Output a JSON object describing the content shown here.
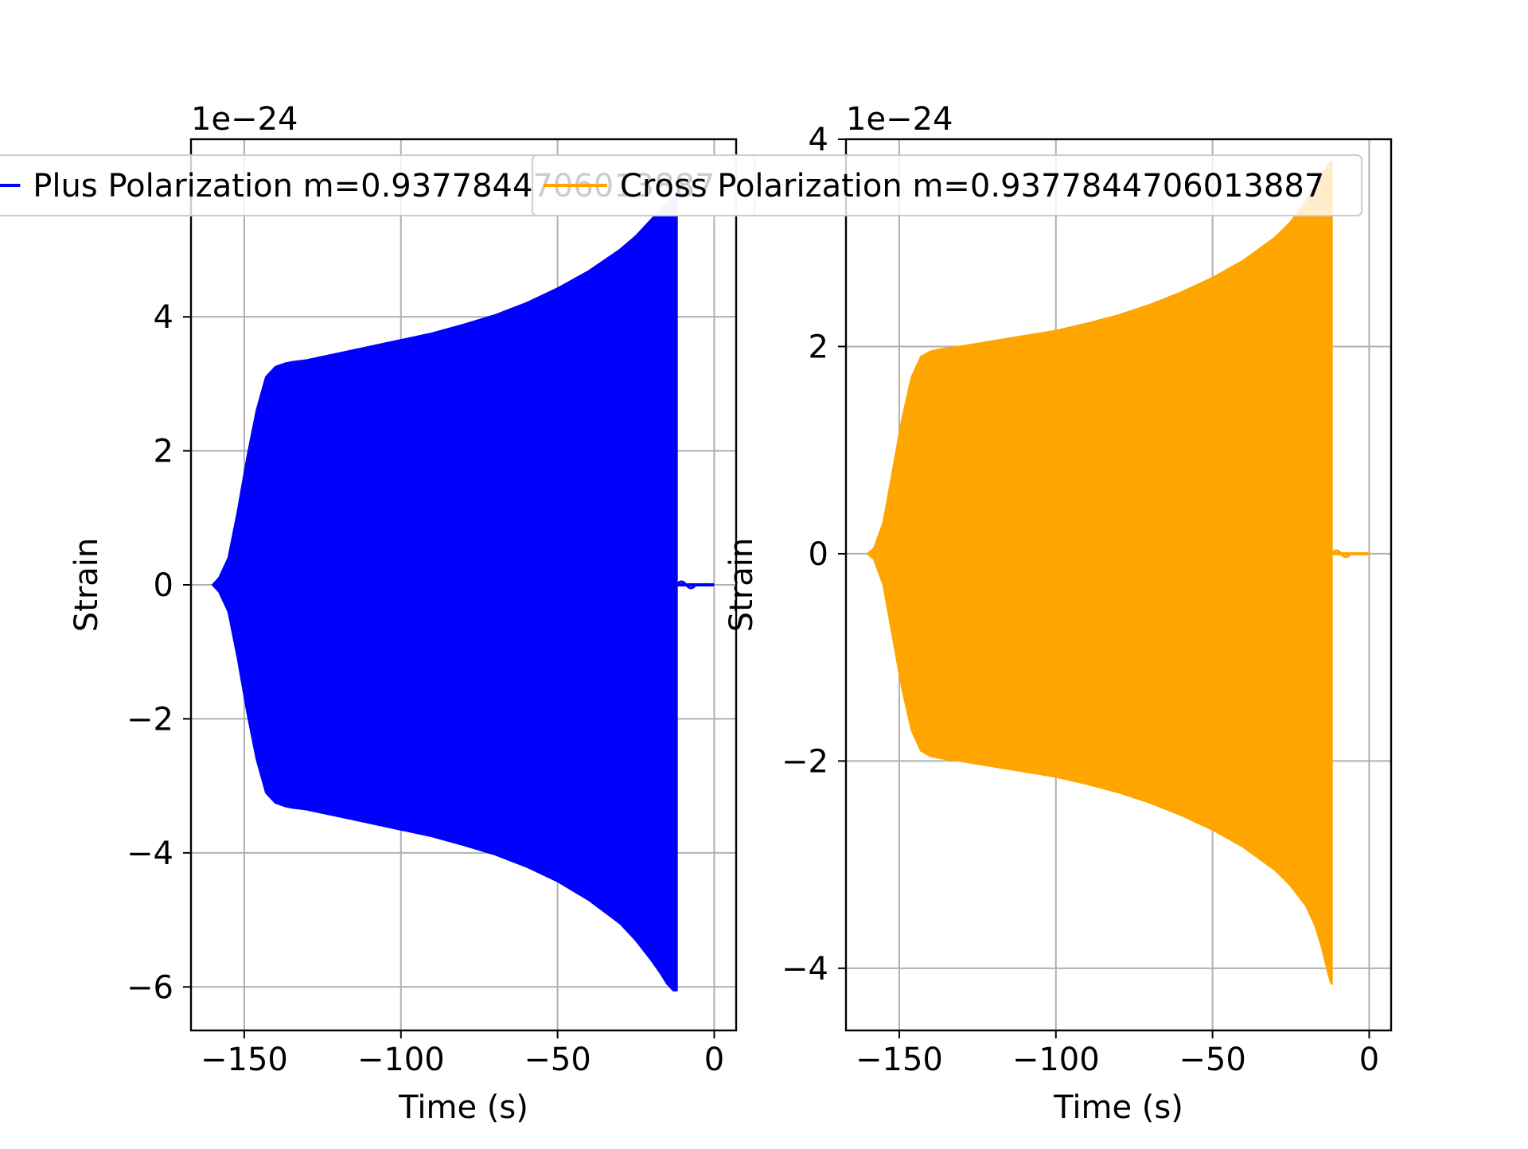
{
  "chart_data": [
    {
      "type": "line",
      "title": "",
      "xlabel": "Time (s)",
      "ylabel": "Strain",
      "offset_text": "1e−24",
      "y_multiplier": 1e-24,
      "xlim": [
        -167,
        7
      ],
      "ylim": [
        -6.65,
        6.65
      ],
      "xticks": [
        -150,
        -100,
        -50,
        0
      ],
      "xtick_labels": [
        "−150",
        "−100",
        "−50",
        "0"
      ],
      "yticks": [
        -6,
        -4,
        -2,
        0,
        2,
        4
      ],
      "ytick_labels": [
        "−6",
        "−4",
        "−2",
        "0",
        "2",
        "4"
      ],
      "grid": true,
      "legend": "upper center",
      "series": [
        {
          "name": "Plus Polarization m=0.9377844706013887",
          "color": "#0000ff",
          "envelope_upper": {
            "x": [
              -160,
              -158,
              -155,
              -152,
              -149,
              -146,
              -143,
              -140,
              -137,
              -135,
              -130,
              -120,
              -110,
              -100,
              -90,
              -80,
              -70,
              -60,
              -50,
              -40,
              -30,
              -25,
              -20,
              -17,
              -15,
              -14,
              -13,
              -12
            ],
            "y": [
              0.0,
              0.1,
              0.4,
              1.1,
              1.9,
              2.6,
              3.1,
              3.25,
              3.3,
              3.32,
              3.35,
              3.45,
              3.55,
              3.65,
              3.75,
              3.88,
              4.02,
              4.2,
              4.42,
              4.68,
              5.0,
              5.2,
              5.45,
              5.6,
              5.7,
              5.75,
              5.8,
              5.8
            ]
          },
          "envelope_lower": {
            "x": [
              -160,
              -158,
              -155,
              -152,
              -149,
              -146,
              -143,
              -140,
              -137,
              -135,
              -130,
              -120,
              -110,
              -100,
              -90,
              -80,
              -70,
              -60,
              -50,
              -40,
              -30,
              -25,
              -20,
              -17,
              -15,
              -14,
              -13,
              -12
            ],
            "y": [
              0.0,
              -0.1,
              -0.4,
              -1.1,
              -1.9,
              -2.6,
              -3.1,
              -3.25,
              -3.3,
              -3.32,
              -3.35,
              -3.45,
              -3.55,
              -3.65,
              -3.75,
              -3.88,
              -4.02,
              -4.2,
              -4.42,
              -4.7,
              -5.05,
              -5.3,
              -5.6,
              -5.8,
              -5.95,
              -6.0,
              -6.05,
              -6.05
            ]
          },
          "ringdown_until": 0
        }
      ]
    },
    {
      "type": "line",
      "title": "",
      "xlabel": "Time (s)",
      "ylabel": "Strain",
      "offset_text": "1e−24",
      "y_multiplier": 1e-24,
      "xlim": [
        -167,
        7
      ],
      "ylim": [
        -4.6,
        4.0
      ],
      "xticks": [
        -150,
        -100,
        -50,
        0
      ],
      "xtick_labels": [
        "−150",
        "−100",
        "−50",
        "0"
      ],
      "yticks": [
        -4,
        -2,
        0,
        2,
        4
      ],
      "ytick_labels": [
        "−4",
        "−2",
        "0",
        "2",
        "4"
      ],
      "grid": true,
      "legend": "upper center",
      "series": [
        {
          "name": "Cross Polarization m=0.9377844706013887",
          "color": "#ffa500",
          "envelope_upper": {
            "x": [
              -160,
              -158,
              -155,
              -152,
              -149,
              -146,
              -143,
              -140,
              -137,
              -135,
              -130,
              -120,
              -110,
              -100,
              -90,
              -80,
              -70,
              -60,
              -50,
              -40,
              -30,
              -25,
              -20,
              -17,
              -15,
              -13,
              -12
            ],
            "y": [
              0.0,
              0.05,
              0.3,
              0.8,
              1.3,
              1.7,
              1.9,
              1.95,
              1.97,
              1.98,
              2.0,
              2.05,
              2.1,
              2.15,
              2.22,
              2.3,
              2.4,
              2.52,
              2.66,
              2.83,
              3.05,
              3.2,
              3.4,
              3.55,
              3.65,
              3.75,
              3.78
            ]
          },
          "envelope_lower": {
            "x": [
              -160,
              -158,
              -155,
              -152,
              -149,
              -146,
              -143,
              -140,
              -137,
              -135,
              -130,
              -120,
              -110,
              -100,
              -90,
              -80,
              -70,
              -60,
              -50,
              -40,
              -30,
              -25,
              -20,
              -17,
              -15,
              -13,
              -12
            ],
            "y": [
              0.0,
              -0.05,
              -0.3,
              -0.8,
              -1.3,
              -1.7,
              -1.9,
              -1.95,
              -1.97,
              -1.98,
              -2.0,
              -2.05,
              -2.1,
              -2.15,
              -2.22,
              -2.3,
              -2.4,
              -2.52,
              -2.66,
              -2.83,
              -3.05,
              -3.2,
              -3.4,
              -3.6,
              -3.8,
              -4.05,
              -4.15
            ]
          },
          "ringdown_until": 0
        }
      ]
    }
  ]
}
